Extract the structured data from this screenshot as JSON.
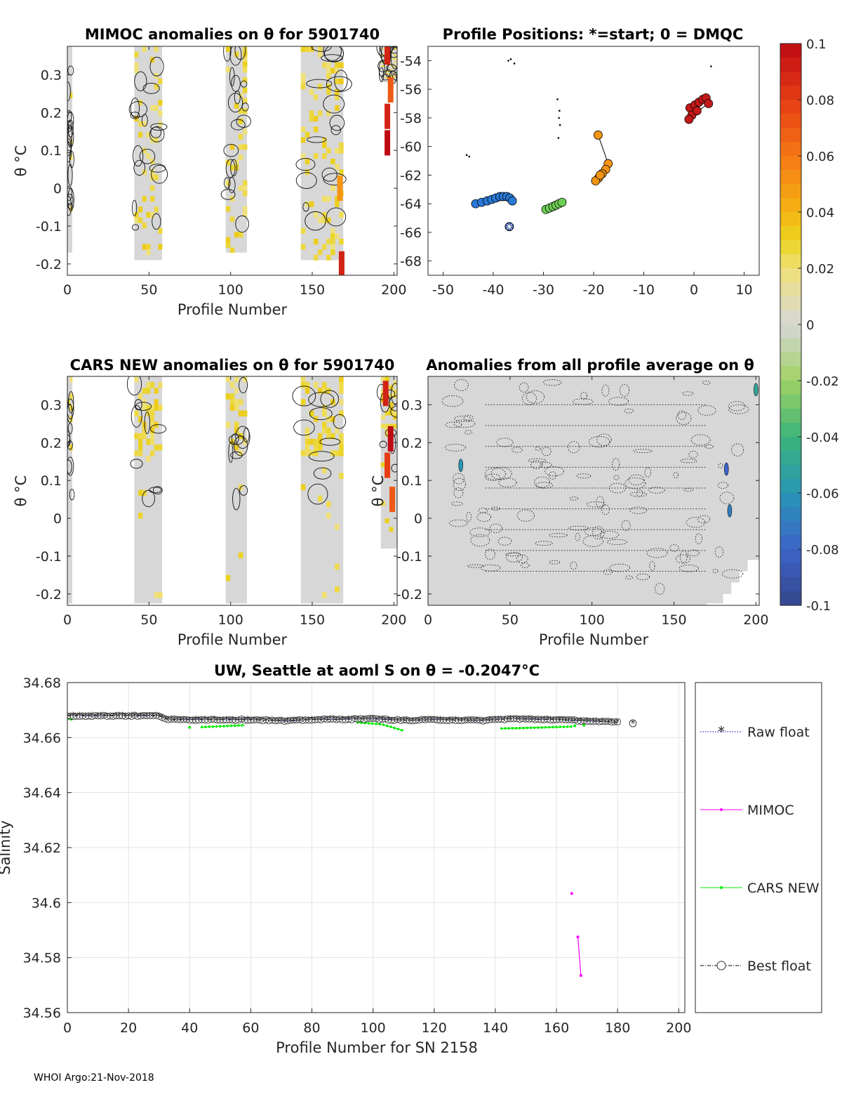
{
  "footer": "WHOI Argo:21-Nov-2018",
  "chart_data": [
    {
      "id": "mimoc",
      "type": "heatmap",
      "title": "MIMOC anomalies on θ  for 5901740",
      "xlabel": "Profile Number",
      "ylabel": "θ °C",
      "xlim": [
        0,
        202
      ],
      "ylim": [
        -0.23,
        0.375
      ],
      "xticks": [
        "0",
        "50",
        "100",
        "150",
        "200"
      ],
      "yticks": [
        "-0.2",
        "-0.1",
        "0",
        "0.1",
        "0.2",
        "0.3"
      ],
      "data_blocks": [
        [
          0,
          3
        ],
        [
          41,
          58
        ],
        [
          97,
          110
        ],
        [
          143,
          169
        ],
        [
          192,
          202
        ]
      ],
      "hot_cells": [
        {
          "x": 196,
          "y": 0.36,
          "v": 0.09
        },
        {
          "x": 198,
          "y": 0.26,
          "v": 0.07
        },
        {
          "x": 196,
          "y": 0.19,
          "v": 0.09
        },
        {
          "x": 196,
          "y": 0.12,
          "v": 0.1
        },
        {
          "x": 168,
          "y": -0.2,
          "v": 0.09
        },
        {
          "x": 167,
          "y": 0.0,
          "v": 0.05
        }
      ]
    },
    {
      "id": "positions",
      "type": "scatter",
      "title": "Profile Positions: *=start; 0 = DMQC",
      "xlim": [
        -53,
        13
      ],
      "ylim": [
        -69,
        -53
      ],
      "xticks": [
        "-50",
        "-40",
        "-30",
        "-20",
        "-10",
        "0",
        "10"
      ],
      "yticks": [
        "-54",
        "-56",
        "-58",
        "-60",
        "-62",
        "-64",
        "-66",
        "-68"
      ],
      "start": {
        "lon": -36.8,
        "lat": -65.6
      },
      "clusters": [
        {
          "name": "blue",
          "color": "#2a79d6",
          "points": [
            [
              -43.5,
              -64.0
            ],
            [
              -42.3,
              -63.9
            ],
            [
              -41.2,
              -63.8
            ],
            [
              -40.3,
              -63.7
            ],
            [
              -39.5,
              -63.6
            ],
            [
              -38.7,
              -63.5
            ],
            [
              -38.0,
              -63.5
            ],
            [
              -37.3,
              -63.5
            ],
            [
              -36.7,
              -63.6
            ],
            [
              -36.2,
              -63.8
            ]
          ]
        },
        {
          "name": "green",
          "color": "#6ecf55",
          "points": [
            [
              -29.5,
              -64.4
            ],
            [
              -28.8,
              -64.3
            ],
            [
              -28.1,
              -64.2
            ],
            [
              -27.5,
              -64.1
            ],
            [
              -26.9,
              -64.0
            ],
            [
              -26.3,
              -63.9
            ]
          ]
        },
        {
          "name": "orange",
          "color": "#f29412",
          "points": [
            [
              -19.1,
              -59.2
            ],
            [
              -17.1,
              -61.2
            ],
            [
              -17.6,
              -61.6
            ],
            [
              -18.3,
              -61.9
            ],
            [
              -19.0,
              -62.2
            ],
            [
              -19.6,
              -62.4
            ],
            [
              -18.7,
              -62.0
            ]
          ]
        },
        {
          "name": "red",
          "color": "#c41818",
          "points": [
            [
              -0.8,
              -57.3
            ],
            [
              0.2,
              -57.1
            ],
            [
              1.0,
              -56.9
            ],
            [
              1.8,
              -56.7
            ],
            [
              2.4,
              -56.6
            ],
            [
              2.9,
              -57.0
            ],
            [
              -0.4,
              -57.8
            ],
            [
              -1.0,
              -58.1
            ],
            [
              0.6,
              -57.5
            ]
          ]
        }
      ],
      "dmqc_marks": [
        [
          -36.5,
          -53.9
        ],
        [
          -35.8,
          -54.2
        ],
        [
          -37.0,
          -54.0
        ],
        [
          -45.3,
          -60.6
        ],
        [
          -44.8,
          -60.7
        ],
        [
          -27.2,
          -56.7
        ],
        [
          -26.8,
          -57.5
        ],
        [
          -26.9,
          -58.0
        ],
        [
          -26.7,
          -58.5
        ],
        [
          -27.0,
          -59.4
        ],
        [
          3.4,
          -54.4
        ]
      ]
    },
    {
      "id": "cars",
      "type": "heatmap",
      "title": "CARS NEW anomalies on θ for 5901740",
      "xlabel": "Profile Number",
      "ylabel": "θ °C",
      "xlim": [
        0,
        202
      ],
      "ylim": [
        -0.23,
        0.375
      ],
      "xticks": [
        "0",
        "50",
        "100",
        "150",
        "200"
      ],
      "yticks": [
        "-0.2",
        "-0.1",
        "0",
        "0.1",
        "0.2",
        "0.3"
      ],
      "data_blocks": [
        [
          0,
          3
        ],
        [
          41,
          58
        ],
        [
          97,
          110
        ],
        [
          143,
          169
        ],
        [
          192,
          202
        ]
      ],
      "hot_cells": [
        {
          "x": 195,
          "y": 0.33,
          "v": 0.09
        },
        {
          "x": 198,
          "y": 0.21,
          "v": 0.1
        },
        {
          "x": 196,
          "y": 0.14,
          "v": 0.08
        },
        {
          "x": 199,
          "y": 0.05,
          "v": 0.07
        }
      ]
    },
    {
      "id": "allavg",
      "type": "heatmap",
      "title": "Anomalies from all profile average on θ",
      "xlabel": "Profile Number",
      "ylabel": "θ °C",
      "xlim": [
        0,
        202
      ],
      "ylim": [
        -0.23,
        0.375
      ],
      "xticks": [
        "0",
        "50",
        "100",
        "150",
        "200"
      ],
      "yticks": [
        "-0.2",
        "-0.1",
        "0",
        "0.1",
        "0.2",
        "0.3"
      ]
    },
    {
      "id": "colorbar",
      "type": "heatmap",
      "ticks": [
        "0.1",
        "0.08",
        "0.06",
        "0.04",
        "0.02",
        "0",
        "-0.02",
        "-0.04",
        "-0.06",
        "-0.08",
        "-0.1"
      ],
      "clim": [
        -0.1,
        0.1
      ]
    },
    {
      "id": "salinity",
      "type": "line",
      "title": "UW, Seattle at aoml S on θ = -0.2047°C",
      "xlabel": "Profile Number for SN 2158",
      "ylabel": "Salinity",
      "xlim": [
        0,
        202
      ],
      "ylim": [
        34.56,
        34.68
      ],
      "xticks": [
        "0",
        "20",
        "40",
        "60",
        "80",
        "100",
        "120",
        "140",
        "160",
        "180",
        "200"
      ],
      "yticks": [
        "34.56",
        "34.58",
        "34.6",
        "34.62",
        "34.64",
        "34.66",
        "34.68"
      ],
      "legend": [
        "Raw float",
        "MIMOC",
        "CARS NEW",
        "Best float"
      ],
      "series": [
        {
          "name": "Raw float",
          "color": "#0000cd",
          "segments": [
            [
              [
                0,
                34.6679
              ],
              [
                30,
                34.6679
              ],
              [
                33,
                34.6665
              ],
              [
                60,
                34.6665
              ],
              [
                72,
                34.666
              ],
              [
                80,
                34.6665
              ],
              [
                100,
                34.6668
              ],
              [
                112,
                34.6662
              ],
              [
                120,
                34.6665
              ],
              [
                135,
                34.6662
              ],
              [
                145,
                34.6668
              ],
              [
                160,
                34.6665
              ],
              [
                175,
                34.6658
              ],
              [
                180,
                34.6655
              ]
            ],
            [
              [
                185,
                34.6652
              ]
            ]
          ]
        },
        {
          "name": "MIMOC",
          "color": "#ff00ff",
          "segments": [
            [
              [
                165,
                34.6033
              ]
            ],
            [
              [
                167,
                34.5875
              ],
              [
                168,
                34.5735
              ]
            ]
          ]
        },
        {
          "name": "CARS NEW",
          "color": "#00ee00",
          "segments": [
            [
              [
                0,
                34.6668
              ],
              [
                2,
                34.6665
              ]
            ],
            [
              [
                40,
                34.6637
              ]
            ],
            [
              [
                44,
                34.6638
              ],
              [
                58,
                34.6645
              ]
            ],
            [
              [
                95,
                34.6655
              ],
              [
                103,
                34.6648
              ],
              [
                110,
                34.6625
              ]
            ],
            [
              [
                142,
                34.6633
              ],
              [
                150,
                34.6635
              ],
              [
                165,
                34.664
              ]
            ],
            [
              [
                166,
                34.6643
              ]
            ],
            [
              [
                169,
                34.6645
              ]
            ]
          ]
        },
        {
          "name": "Best float",
          "color": "#000000",
          "segments": [
            [
              [
                0,
                34.6679
              ],
              [
                30,
                34.6679
              ],
              [
                33,
                34.6665
              ],
              [
                60,
                34.6665
              ],
              [
                72,
                34.666
              ],
              [
                80,
                34.6665
              ],
              [
                100,
                34.6668
              ],
              [
                112,
                34.6662
              ],
              [
                120,
                34.6665
              ],
              [
                135,
                34.6662
              ],
              [
                145,
                34.6668
              ],
              [
                160,
                34.6665
              ],
              [
                175,
                34.6658
              ],
              [
                180,
                34.6655
              ]
            ],
            [
              [
                185,
                34.6652
              ]
            ]
          ]
        }
      ]
    }
  ]
}
